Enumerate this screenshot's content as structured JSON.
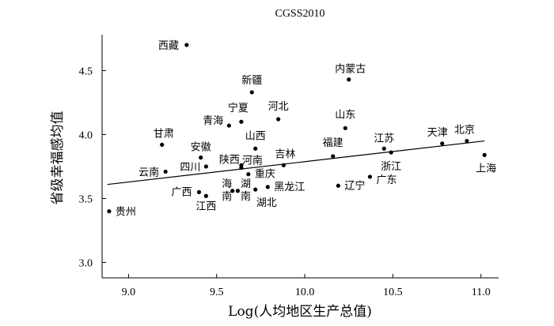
{
  "chart_data": {
    "type": "scatter",
    "title": "CGSS2010",
    "xlabel": "Log(人均地区生产总值)",
    "ylabel": "省级幸福感均值",
    "xlim": [
      8.85,
      11.1
    ],
    "ylim": [
      2.88,
      4.78
    ],
    "xticks": [
      9.0,
      9.5,
      10.0,
      10.5,
      11.0
    ],
    "xtick_labels": [
      "9.0",
      "9.5",
      "10.0",
      "10.5",
      "11.0"
    ],
    "yticks": [
      3.0,
      3.5,
      4.0,
      4.5
    ],
    "ytick_labels": [
      "3.0",
      "3.5",
      "4.0",
      "4.5"
    ],
    "grid": false,
    "points": [
      {
        "label": "西藏",
        "x": 9.33,
        "y": 4.7
      },
      {
        "label": "内蒙古",
        "x": 10.25,
        "y": 4.43
      },
      {
        "label": "新疆",
        "x": 9.7,
        "y": 4.33
      },
      {
        "label": "河北",
        "x": 9.85,
        "y": 4.12
      },
      {
        "label": "宁夏",
        "x": 9.64,
        "y": 4.1
      },
      {
        "label": "青海",
        "x": 9.57,
        "y": 4.07
      },
      {
        "label": "山东",
        "x": 10.23,
        "y": 4.05
      },
      {
        "label": "甘肃",
        "x": 9.19,
        "y": 3.92
      },
      {
        "label": "山西",
        "x": 9.72,
        "y": 3.89
      },
      {
        "label": "安徽",
        "x": 9.41,
        "y": 3.82
      },
      {
        "label": "福建",
        "x": 10.16,
        "y": 3.83
      },
      {
        "label": "江苏",
        "x": 10.45,
        "y": 3.89
      },
      {
        "label": "天津",
        "x": 10.78,
        "y": 3.93
      },
      {
        "label": "北京",
        "x": 10.92,
        "y": 3.95
      },
      {
        "label": "上海",
        "x": 11.02,
        "y": 3.84
      },
      {
        "label": "浙江",
        "x": 10.49,
        "y": 3.86
      },
      {
        "label": "陕西",
        "x": 9.64,
        "y": 3.76
      },
      {
        "label": "河南",
        "x": 9.64,
        "y": 3.74
      },
      {
        "label": "吉林",
        "x": 9.88,
        "y": 3.76
      },
      {
        "label": "四川",
        "x": 9.44,
        "y": 3.75
      },
      {
        "label": "云南",
        "x": 9.21,
        "y": 3.71
      },
      {
        "label": "重庆",
        "x": 9.68,
        "y": 3.69
      },
      {
        "label": "广东",
        "x": 10.37,
        "y": 3.67
      },
      {
        "label": "辽宁",
        "x": 10.19,
        "y": 3.6
      },
      {
        "label": "黑龙江",
        "x": 9.79,
        "y": 3.59
      },
      {
        "label": "海南",
        "x": 9.59,
        "y": 3.56
      },
      {
        "label": "湖南",
        "x": 9.62,
        "y": 3.56
      },
      {
        "label": "湖北",
        "x": 9.72,
        "y": 3.57
      },
      {
        "label": "广西",
        "x": 9.4,
        "y": 3.55
      },
      {
        "label": "江西",
        "x": 9.44,
        "y": 3.52
      },
      {
        "label": "贵州",
        "x": 8.89,
        "y": 3.4
      }
    ],
    "trendline": {
      "x": [
        8.88,
        11.02
      ],
      "y": [
        3.61,
        3.95
      ]
    }
  }
}
